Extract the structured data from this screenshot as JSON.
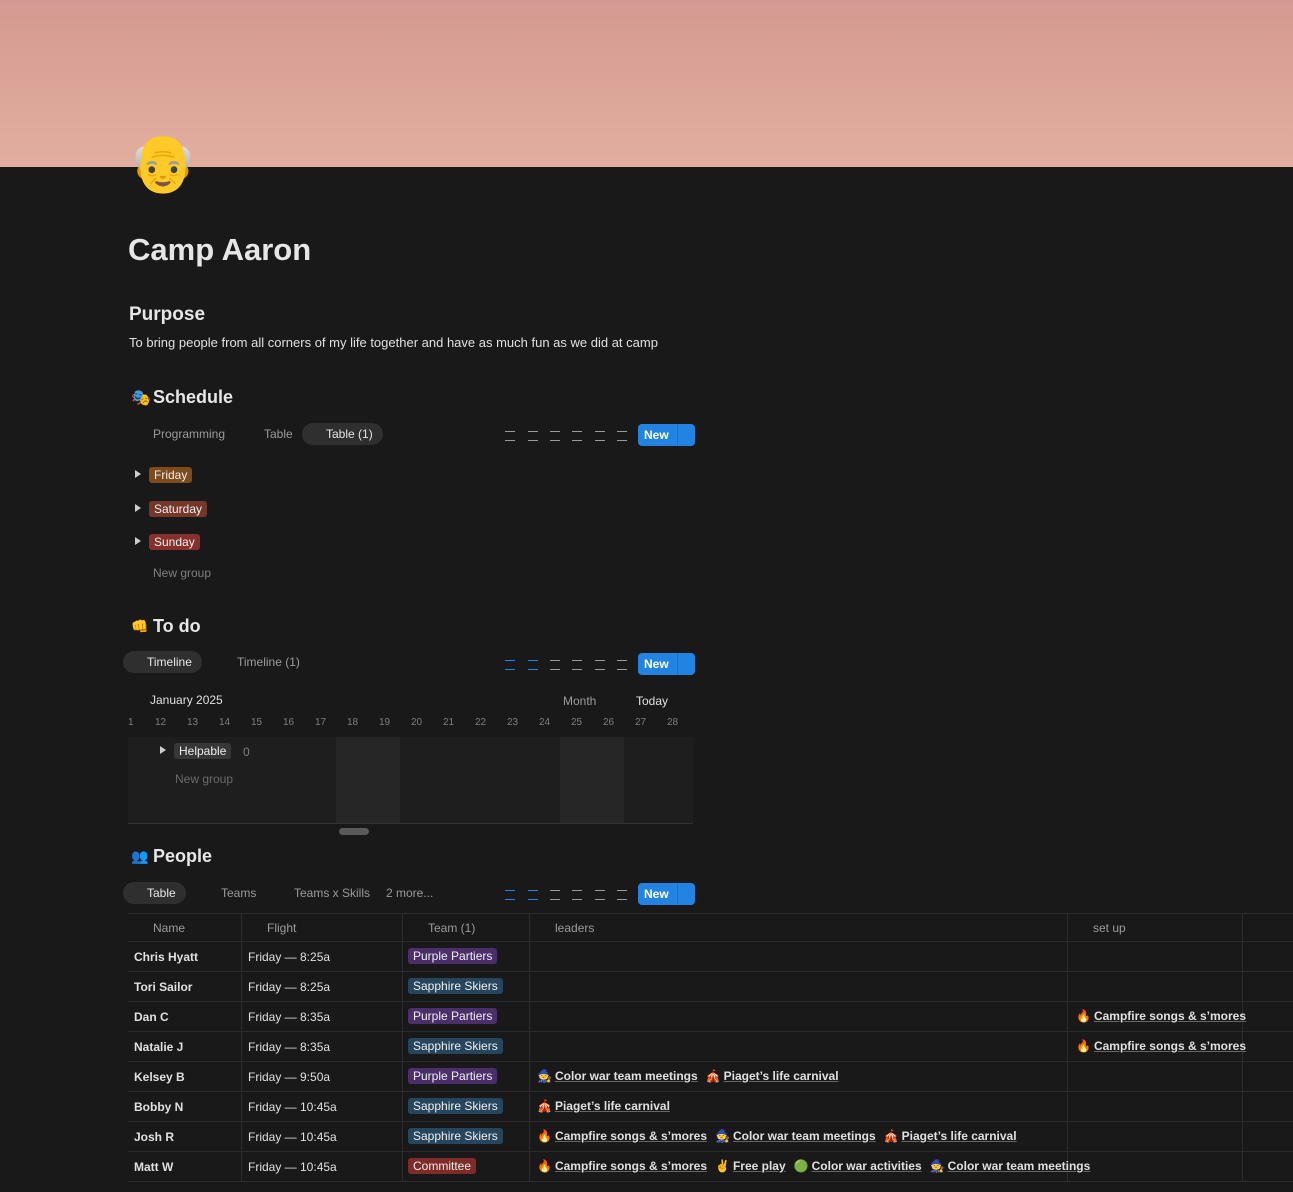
{
  "page": {
    "icon": "👴",
    "title": "Camp Aaron"
  },
  "purpose": {
    "heading": "Purpose",
    "text": "To bring people from all corners of my life together and have as much fun as we did at camp"
  },
  "schedule": {
    "icon": "🎭",
    "heading": "Schedule",
    "views": [
      "Programming",
      "Table",
      "Table (1)"
    ],
    "new": "New",
    "groups": [
      {
        "label": "Friday",
        "color": "#7f4a1c"
      },
      {
        "label": "Saturday",
        "color": "#73382a"
      },
      {
        "label": "Sunday",
        "color": "#86302d"
      }
    ],
    "new_group": "New group"
  },
  "todo": {
    "icon": "👊",
    "heading": "To do",
    "views": [
      "Timeline",
      "Timeline (1)"
    ],
    "new": "New",
    "month": "January 2025",
    "scale": "Month",
    "today": "Today",
    "days": [
      1,
      12,
      13,
      14,
      15,
      16,
      17,
      18,
      19,
      20,
      21,
      22,
      23,
      24,
      25,
      26,
      27,
      28
    ],
    "groups": [
      {
        "label": "Helpable",
        "count": 0
      }
    ],
    "new_group": "New group"
  },
  "people": {
    "icon": "👥",
    "heading": "People",
    "views": [
      "Table",
      "Teams",
      "Teams x Skills",
      "2 more..."
    ],
    "new": "New",
    "columns": [
      "Name",
      "Flight",
      "Team (1)",
      "leaders",
      "set up"
    ],
    "rows": [
      {
        "name": "Chris Hyatt",
        "flight": "Friday — 8:25a",
        "team": {
          "label": "Purple Partiers",
          "color": "#4b2f6b"
        },
        "leaders": [],
        "setup": []
      },
      {
        "name": "Tori Sailor",
        "flight": "Friday — 8:25a",
        "team": {
          "label": "Sapphire Skiers",
          "color": "#27465e"
        },
        "leaders": [],
        "setup": []
      },
      {
        "name": "Dan C",
        "flight": "Friday — 8:35a",
        "team": {
          "label": "Purple Partiers",
          "color": "#4b2f6b"
        },
        "leaders": [],
        "setup": [
          {
            "icon": "🔥",
            "label": "Campfire songs & s’mores"
          }
        ]
      },
      {
        "name": "Natalie J",
        "flight": "Friday — 8:35a",
        "team": {
          "label": "Sapphire Skiers",
          "color": "#27465e"
        },
        "leaders": [],
        "setup": [
          {
            "icon": "🔥",
            "label": "Campfire songs & s’mores"
          }
        ]
      },
      {
        "name": "Kelsey B",
        "flight": "Friday — 9:50a",
        "team": {
          "label": "Purple Partiers",
          "color": "#4b2f6b"
        },
        "leaders": [
          {
            "icon": "🧙",
            "label": "Color war team meetings"
          },
          {
            "icon": "🎪",
            "label": "Piaget’s life carnival"
          }
        ],
        "setup": []
      },
      {
        "name": "Bobby N",
        "flight": "Friday — 10:45a",
        "team": {
          "label": "Sapphire Skiers",
          "color": "#27465e"
        },
        "leaders": [
          {
            "icon": "🎪",
            "label": "Piaget’s life carnival"
          }
        ],
        "setup": []
      },
      {
        "name": "Josh R",
        "flight": "Friday — 10:45a",
        "team": {
          "label": "Sapphire Skiers",
          "color": "#27465e"
        },
        "leaders": [
          {
            "icon": "🔥",
            "label": "Campfire songs & s’mores"
          },
          {
            "icon": "🧙",
            "label": "Color war team meetings"
          },
          {
            "icon": "🎪",
            "label": "Piaget’s life carnival"
          }
        ],
        "setup": []
      },
      {
        "name": "Matt W",
        "flight": "Friday — 10:45a",
        "team": {
          "label": "Committee",
          "color": "#7d2c2a"
        },
        "leaders": [
          {
            "icon": "🔥",
            "label": "Campfire songs & s’mores"
          },
          {
            "icon": "✌️",
            "label": "Free play"
          },
          {
            "icon": "🟢",
            "label": "Color war activities"
          },
          {
            "icon": "🧙",
            "label": "Color war team meetings"
          }
        ],
        "setup": []
      }
    ]
  }
}
